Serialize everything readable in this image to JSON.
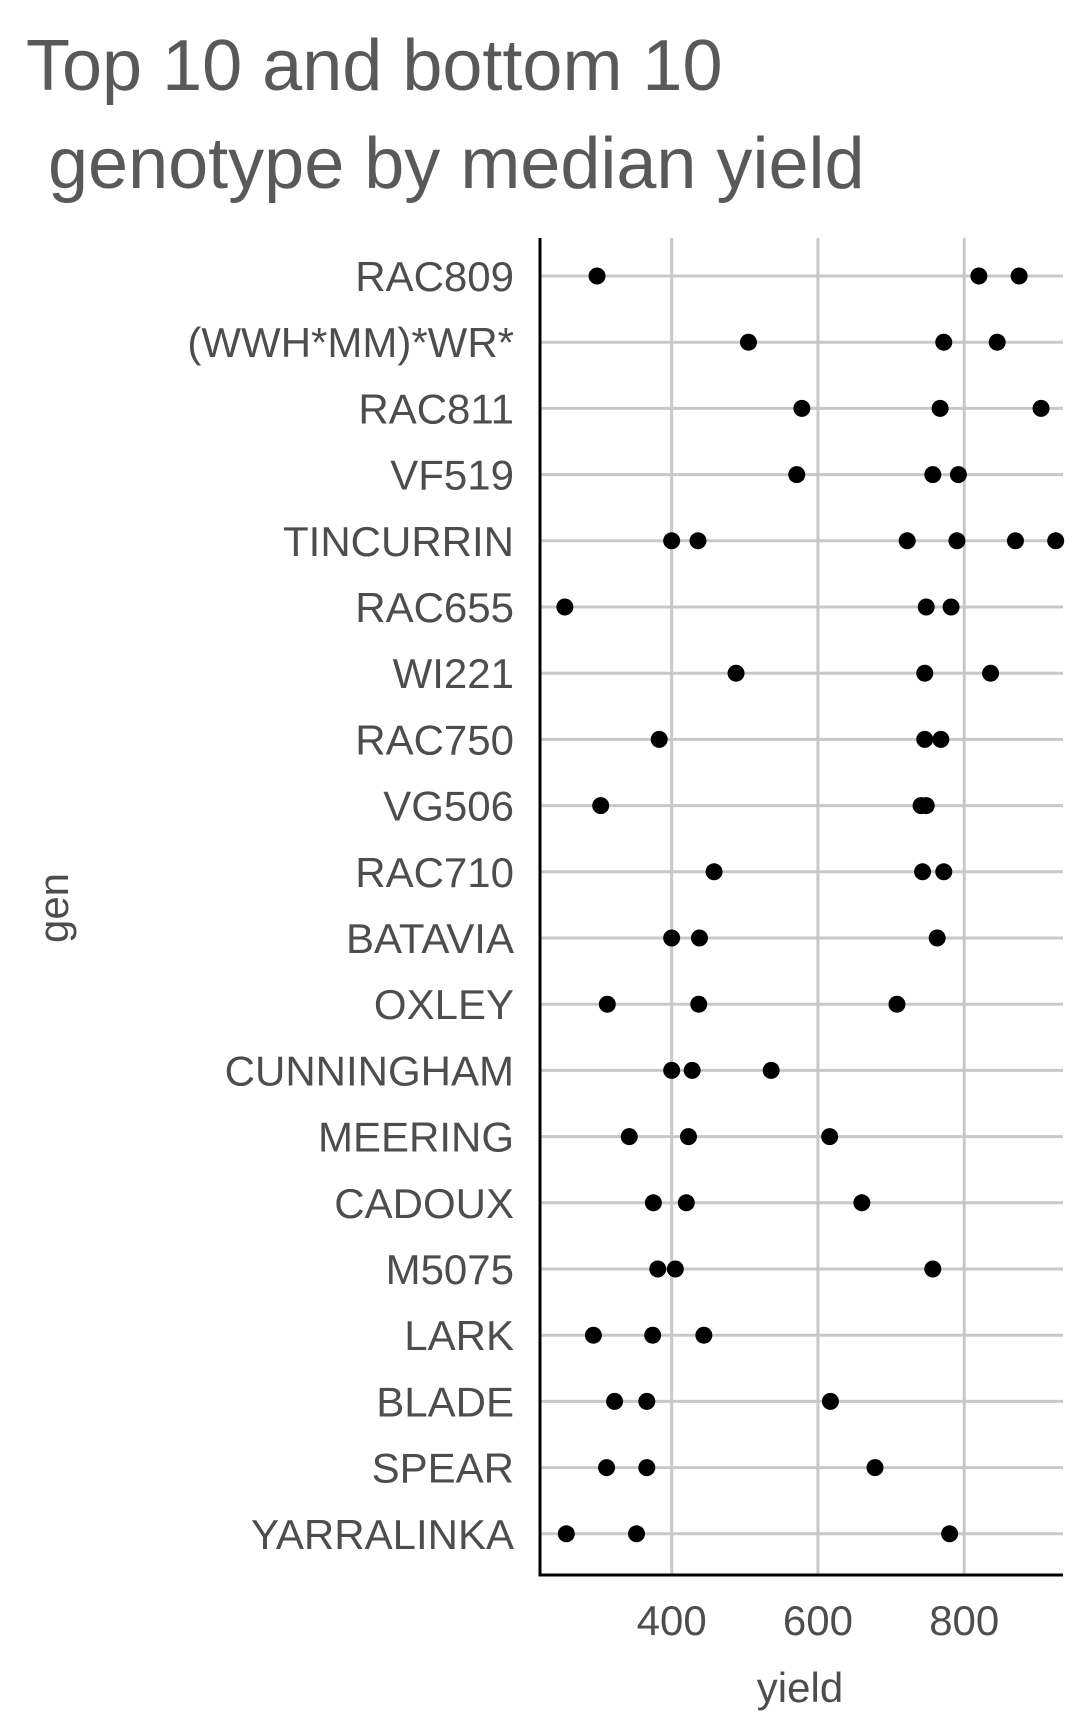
{
  "chart_data": {
    "type": "scatter",
    "title_lines": [
      "Top 10 and bottom 10",
      "genotype by median yield"
    ],
    "xlabel": "yield",
    "ylabel": "gen",
    "xlim": [
      220,
      935
    ],
    "xticks": [
      400,
      600,
      800
    ],
    "grid": true,
    "categories": [
      "RAC809",
      "(WWH*MM)*WR*",
      "RAC811",
      "VF519",
      "TINCURRIN",
      "RAC655",
      "WI221",
      "RAC750",
      "VG506",
      "RAC710",
      "BATAVIA",
      "OXLEY",
      "CUNNINGHAM",
      "MEERING",
      "CADOUX",
      "M5075",
      "LARK",
      "BLADE",
      "SPEAR",
      "YARRALINKA"
    ],
    "points": [
      {
        "gen": "RAC809",
        "yields": [
          298,
          820,
          875
        ]
      },
      {
        "gen": "(WWH*MM)*WR*",
        "yields": [
          505,
          772,
          845
        ]
      },
      {
        "gen": "RAC811",
        "yields": [
          578,
          767,
          905
        ]
      },
      {
        "gen": "VF519",
        "yields": [
          571,
          757,
          792
        ]
      },
      {
        "gen": "TINCURRIN",
        "yields": [
          400,
          436,
          722,
          790,
          870,
          925
        ]
      },
      {
        "gen": "RAC655",
        "yields": [
          254,
          748,
          782
        ]
      },
      {
        "gen": "WI221",
        "yields": [
          488,
          746,
          836
        ]
      },
      {
        "gen": "RAC750",
        "yields": [
          383,
          746,
          768
        ]
      },
      {
        "gen": "VG506",
        "yields": [
          303,
          741,
          748
        ]
      },
      {
        "gen": "RAC710",
        "yields": [
          458,
          743,
          772
        ]
      },
      {
        "gen": "BATAVIA",
        "yields": [
          400,
          438,
          763
        ]
      },
      {
        "gen": "OXLEY",
        "yields": [
          312,
          437,
          708
        ]
      },
      {
        "gen": "CUNNINGHAM",
        "yields": [
          400,
          428,
          536
        ]
      },
      {
        "gen": "MEERING",
        "yields": [
          342,
          423,
          616
        ]
      },
      {
        "gen": "CADOUX",
        "yields": [
          375,
          420,
          660
        ]
      },
      {
        "gen": "M5075",
        "yields": [
          381,
          405,
          757
        ]
      },
      {
        "gen": "LARK",
        "yields": [
          293,
          374,
          444
        ]
      },
      {
        "gen": "BLADE",
        "yields": [
          322,
          366,
          617
        ]
      },
      {
        "gen": "SPEAR",
        "yields": [
          311,
          366,
          678
        ]
      },
      {
        "gen": "YARRALINKA",
        "yields": [
          256,
          352,
          780
        ]
      }
    ],
    "colors": {
      "point": "#000000",
      "grid": "#c8c8c8",
      "axis": "#000000",
      "text": "#4d4d4d",
      "title": "#595959"
    }
  }
}
